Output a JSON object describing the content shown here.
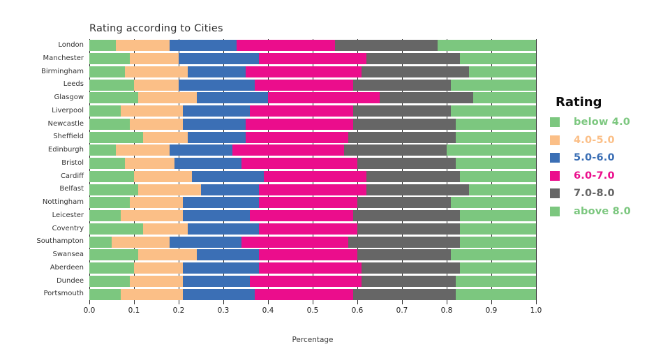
{
  "title": "Rating according to Cities",
  "x_axis": {
    "label": "Percentage",
    "ticks": [
      "0.0",
      "0.1",
      "0.2",
      "0.3",
      "0.4",
      "0.5",
      "0.6",
      "0.7",
      "0.8",
      "0.9",
      "1.0"
    ]
  },
  "legend": {
    "title": "Rating",
    "entries": [
      {
        "label": "below 4.0",
        "color": "#7CC77F"
      },
      {
        "label": "4.0-5.0",
        "color": "#FBBF87"
      },
      {
        "label": "5.0-6.0",
        "color": "#3B6FB5"
      },
      {
        "label": "6.0-7.0",
        "color": "#EB0D8C"
      },
      {
        "label": "7.0-8.0",
        "color": "#666666"
      },
      {
        "label": "above 8.0",
        "color": "#7CC77F"
      }
    ]
  },
  "chart_data": {
    "type": "bar",
    "orientation": "horizontal-stacked",
    "title": "Rating according to Cities",
    "xlabel": "Percentage",
    "ylabel": "",
    "xlim": [
      0,
      1
    ],
    "grid": "vertical-ticks",
    "legend_position": "right",
    "categories": [
      "London",
      "Manchester",
      "Birmingham",
      "Leeds",
      "Glasgow",
      "Liverpool",
      "Newcastle",
      "Sheffield",
      "Edinburgh",
      "Bristol",
      "Cardiff",
      "Belfast",
      "Nottingham",
      "Leicester",
      "Coventry",
      "Southampton",
      "Swansea",
      "Aberdeen",
      "Dundee",
      "Portsmouth"
    ],
    "series": [
      {
        "name": "below 4.0",
        "color": "#7CC77F",
        "values": [
          0.06,
          0.09,
          0.08,
          0.1,
          0.11,
          0.07,
          0.09,
          0.12,
          0.06,
          0.08,
          0.1,
          0.11,
          0.09,
          0.07,
          0.12,
          0.05,
          0.11,
          0.1,
          0.09,
          0.07
        ]
      },
      {
        "name": "4.0-5.0",
        "color": "#FBBF87",
        "values": [
          0.12,
          0.11,
          0.14,
          0.1,
          0.13,
          0.14,
          0.12,
          0.1,
          0.12,
          0.11,
          0.13,
          0.14,
          0.12,
          0.14,
          0.1,
          0.13,
          0.13,
          0.11,
          0.12,
          0.14
        ]
      },
      {
        "name": "5.0-6.0",
        "color": "#3B6FB5",
        "values": [
          0.15,
          0.18,
          0.13,
          0.17,
          0.16,
          0.15,
          0.14,
          0.13,
          0.14,
          0.15,
          0.16,
          0.13,
          0.17,
          0.15,
          0.16,
          0.16,
          0.14,
          0.17,
          0.15,
          0.16
        ]
      },
      {
        "name": "6.0-7.0",
        "color": "#EB0D8C",
        "values": [
          0.22,
          0.24,
          0.26,
          0.22,
          0.25,
          0.23,
          0.24,
          0.23,
          0.25,
          0.26,
          0.23,
          0.24,
          0.22,
          0.23,
          0.22,
          0.24,
          0.22,
          0.23,
          0.25,
          0.22
        ]
      },
      {
        "name": "7.0-8.0",
        "color": "#666666",
        "values": [
          0.23,
          0.21,
          0.24,
          0.22,
          0.21,
          0.22,
          0.23,
          0.24,
          0.23,
          0.22,
          0.21,
          0.23,
          0.21,
          0.24,
          0.23,
          0.25,
          0.21,
          0.22,
          0.21,
          0.23
        ]
      },
      {
        "name": "above 8.0",
        "color": "#7CC77F",
        "values": [
          0.22,
          0.17,
          0.15,
          0.19,
          0.14,
          0.19,
          0.18,
          0.18,
          0.2,
          0.18,
          0.17,
          0.15,
          0.19,
          0.17,
          0.17,
          0.17,
          0.19,
          0.17,
          0.18,
          0.18
        ]
      }
    ]
  }
}
